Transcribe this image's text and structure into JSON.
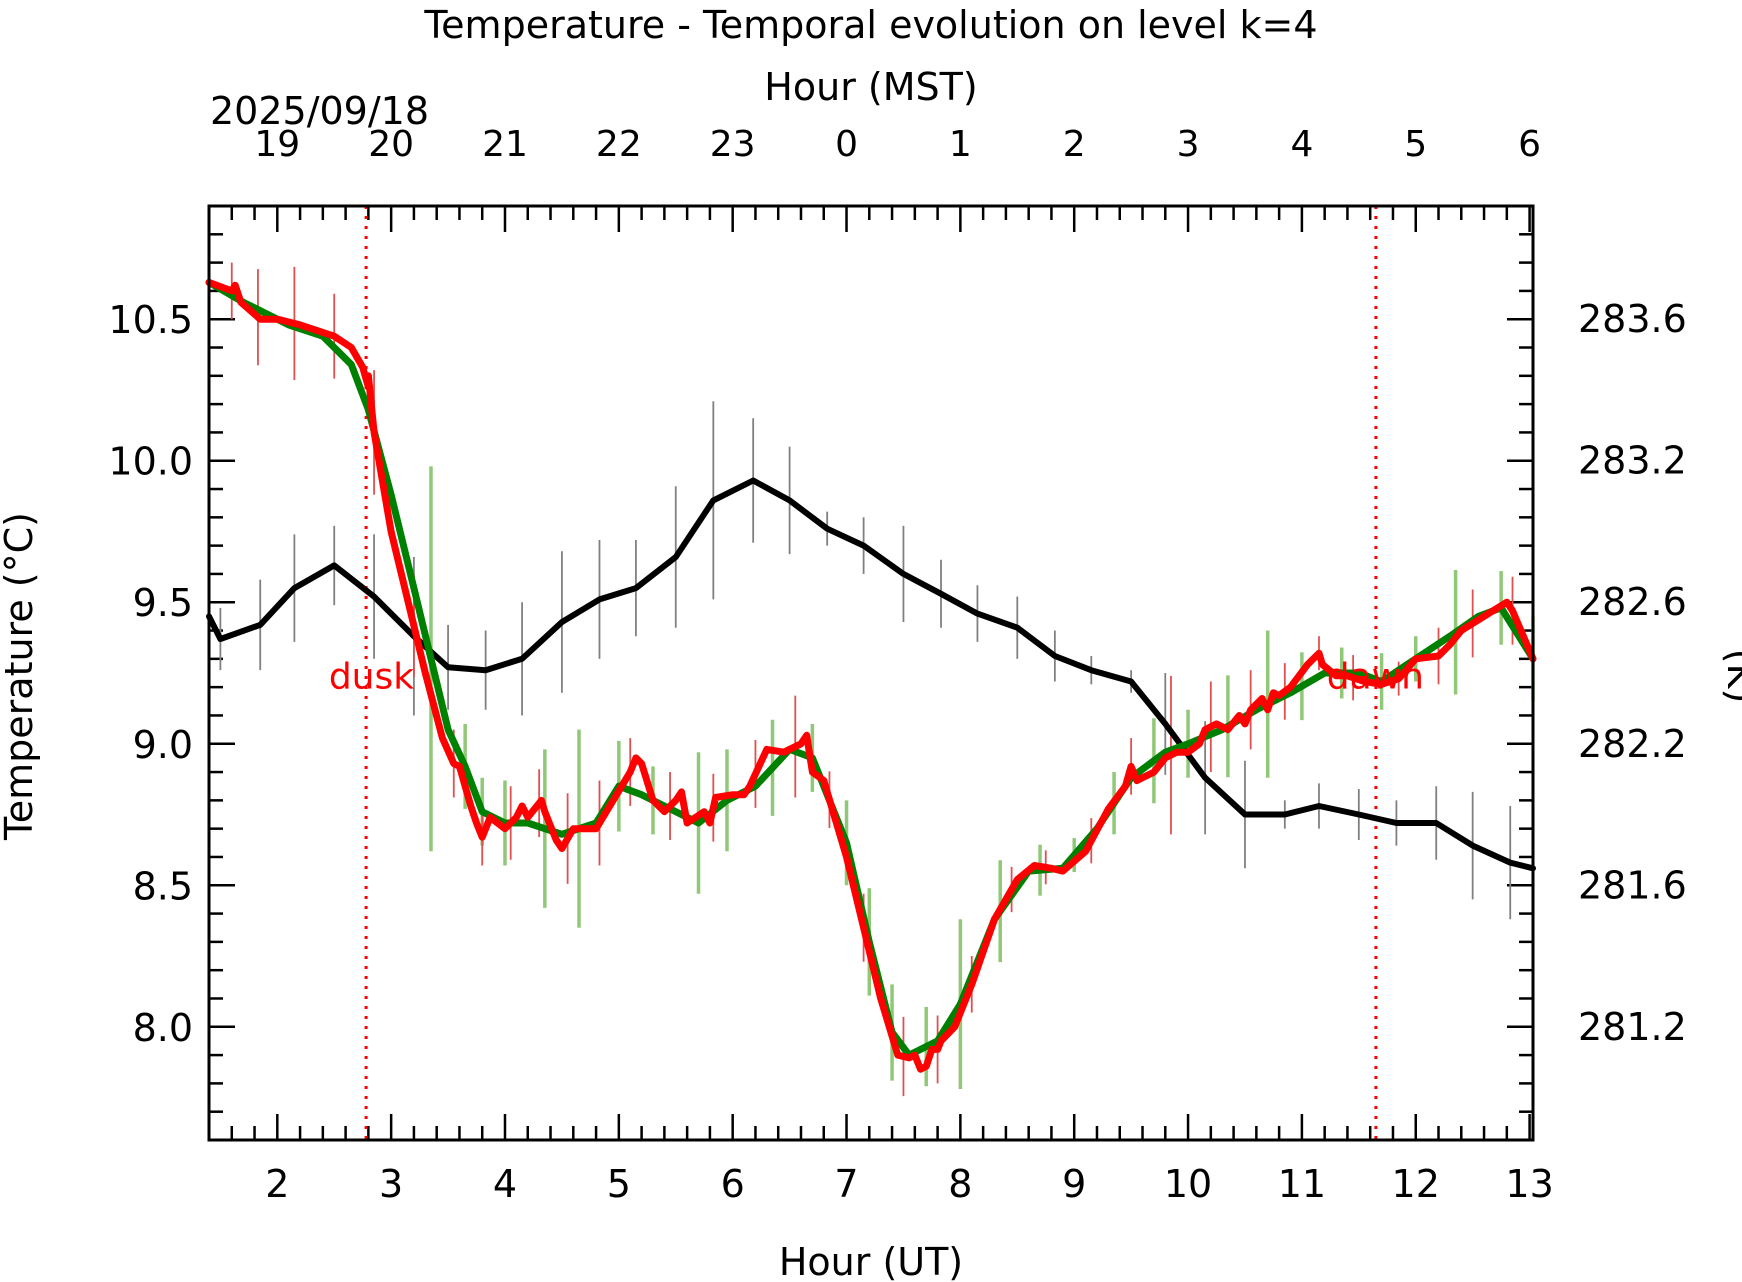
{
  "chart_data": {
    "type": "line",
    "title": "Temperature - Temporal evolution on level k=4",
    "xlabel": "Hour (UT)",
    "x2label": "Hour (MST)",
    "date_label": "2025/09/18",
    "ylabel": "Temperature (°C)",
    "y2label": "(K)",
    "xlim": [
      1.4,
      13.03
    ],
    "ylim": [
      7.6,
      10.9
    ],
    "y2lim": [
      280.88,
      284.18
    ],
    "grid": false,
    "x_ticks": [
      "2",
      "3",
      "4",
      "5",
      "6",
      "7",
      "8",
      "9",
      "10",
      "11",
      "12",
      "13"
    ],
    "x_tick_values": [
      2,
      3,
      4,
      5,
      6,
      7,
      8,
      9,
      10,
      11,
      12,
      13
    ],
    "x2_ticks": [
      "19",
      "20",
      "21",
      "22",
      "23",
      "0",
      "1",
      "2",
      "3",
      "4",
      "5",
      "6"
    ],
    "x2_tick_values": [
      2,
      3,
      4,
      5,
      6,
      7,
      8,
      9,
      10,
      11,
      12,
      13
    ],
    "y_ticks": [
      "8.0",
      "8.5",
      "9.0",
      "9.5",
      "10.0",
      "10.5"
    ],
    "y_tick_values": [
      8.0,
      8.5,
      9.0,
      9.5,
      10.0,
      10.5
    ],
    "y2_ticks": [
      "281.2",
      "281.6",
      "282.2",
      "282.6",
      "283.2",
      "283.6"
    ],
    "y2_tick_values": [
      8.0,
      8.5,
      9.0,
      9.5,
      10.0,
      10.5
    ],
    "annotations": [
      {
        "label": "dusk",
        "x": 2.78,
        "y": 9.23,
        "color": "#ff0000",
        "align": "end"
      },
      {
        "label": "dawn",
        "x": 11.65,
        "y": 9.23,
        "color": "#ff0000",
        "align": "end"
      }
    ],
    "vlines": [
      {
        "x": 2.78,
        "color": "#ff0000"
      },
      {
        "x": 11.65,
        "color": "#ff0000"
      }
    ],
    "series": [
      {
        "color": "#000000",
        "errcolor": "#808080",
        "x": [
          1.4,
          1.5,
          1.85,
          2.15,
          2.5,
          2.85,
          3.2,
          3.5,
          3.83,
          4.15,
          4.5,
          4.83,
          5.15,
          5.5,
          5.83,
          6.18,
          6.5,
          6.83,
          7.15,
          7.5,
          7.83,
          8.15,
          8.5,
          8.83,
          9.15,
          9.5,
          9.8,
          10.15,
          10.5,
          10.85,
          11.15,
          11.5,
          11.83,
          12.18,
          12.5,
          12.83,
          13.03
        ],
        "y": [
          9.45,
          9.37,
          9.42,
          9.55,
          9.63,
          9.52,
          9.38,
          9.27,
          9.26,
          9.3,
          9.43,
          9.51,
          9.55,
          9.66,
          9.86,
          9.93,
          9.86,
          9.76,
          9.7,
          9.6,
          9.53,
          9.46,
          9.41,
          9.31,
          9.26,
          9.22,
          9.07,
          8.88,
          8.75,
          8.75,
          8.78,
          8.75,
          8.72,
          8.72,
          8.64,
          8.58,
          8.56
        ],
        "errors": [
          [
            1.5,
            0.11
          ],
          [
            1.85,
            0.16
          ],
          [
            2.15,
            0.19
          ],
          [
            2.5,
            0.14
          ],
          [
            2.85,
            0.22
          ],
          [
            3.2,
            0.28
          ],
          [
            3.5,
            0.15
          ],
          [
            3.83,
            0.14
          ],
          [
            4.15,
            0.2
          ],
          [
            4.5,
            0.25
          ],
          [
            4.83,
            0.21
          ],
          [
            5.15,
            0.17
          ],
          [
            5.5,
            0.25
          ],
          [
            5.83,
            0.35
          ],
          [
            6.18,
            0.22
          ],
          [
            6.5,
            0.19
          ],
          [
            6.83,
            0.06
          ],
          [
            7.15,
            0.1
          ],
          [
            7.5,
            0.17
          ],
          [
            7.83,
            0.12
          ],
          [
            8.15,
            0.1
          ],
          [
            8.5,
            0.11
          ],
          [
            8.83,
            0.09
          ],
          [
            9.15,
            0.05
          ],
          [
            9.5,
            0.04
          ],
          [
            9.8,
            0.18
          ],
          [
            10.15,
            0.2
          ],
          [
            10.5,
            0.19
          ],
          [
            10.85,
            0.05
          ],
          [
            11.15,
            0.08
          ],
          [
            11.5,
            0.09
          ],
          [
            11.83,
            0.08
          ],
          [
            12.18,
            0.13
          ],
          [
            12.5,
            0.19
          ],
          [
            12.83,
            0.2
          ]
        ]
      },
      {
        "color": "#008000",
        "errcolor": "#90c878",
        "x": [
          1.4,
          1.7,
          2.1,
          2.4,
          2.65,
          2.8,
          3.0,
          3.2,
          3.35,
          3.5,
          3.65,
          3.8,
          4.0,
          4.2,
          4.5,
          4.8,
          5.0,
          5.2,
          5.45,
          5.7,
          5.95,
          6.2,
          6.5,
          6.7,
          7.0,
          7.2,
          7.4,
          7.55,
          7.8,
          8.0,
          8.3,
          8.6,
          8.9,
          9.2,
          9.5,
          9.8,
          10.0,
          10.3,
          10.6,
          10.9,
          11.2,
          11.5,
          11.7,
          12.0,
          12.3,
          12.55,
          12.75,
          13.03
        ],
        "y": [
          10.63,
          10.56,
          10.48,
          10.44,
          10.34,
          10.18,
          9.88,
          9.55,
          9.3,
          9.05,
          8.92,
          8.76,
          8.72,
          8.72,
          8.68,
          8.72,
          8.85,
          8.82,
          8.77,
          8.72,
          8.8,
          8.85,
          8.98,
          8.95,
          8.65,
          8.3,
          7.98,
          7.9,
          7.95,
          8.08,
          8.38,
          8.55,
          8.56,
          8.7,
          8.88,
          8.97,
          9.0,
          9.05,
          9.12,
          9.18,
          9.25,
          9.25,
          9.22,
          9.3,
          9.38,
          9.45,
          9.48,
          9.3
        ],
        "errors": [
          [
            3.35,
            0.68
          ],
          [
            3.65,
            0.15
          ],
          [
            3.8,
            0.12
          ],
          [
            4.0,
            0.15
          ],
          [
            4.35,
            0.28
          ],
          [
            4.65,
            0.35
          ],
          [
            5.0,
            0.16
          ],
          [
            5.3,
            0.12
          ],
          [
            5.7,
            0.25
          ],
          [
            5.95,
            0.18
          ],
          [
            6.35,
            0.17
          ],
          [
            6.7,
            0.12
          ],
          [
            7.0,
            0.15
          ],
          [
            7.2,
            0.19
          ],
          [
            7.4,
            0.17
          ],
          [
            7.7,
            0.14
          ],
          [
            8.0,
            0.3
          ],
          [
            8.35,
            0.18
          ],
          [
            8.7,
            0.09
          ],
          [
            9.0,
            0.06
          ],
          [
            9.35,
            0.11
          ],
          [
            9.7,
            0.15
          ],
          [
            10.0,
            0.12
          ],
          [
            10.35,
            0.18
          ],
          [
            10.7,
            0.26
          ],
          [
            11.0,
            0.12
          ],
          [
            11.35,
            0.09
          ],
          [
            11.7,
            0.1
          ],
          [
            12.0,
            0.08
          ],
          [
            12.35,
            0.22
          ],
          [
            12.75,
            0.13
          ],
          [
            13.03,
            0.15
          ]
        ]
      },
      {
        "color": "#ff0000",
        "errcolor": "#e05050",
        "x": [
          1.4,
          1.6,
          1.63,
          1.68,
          1.85,
          2.0,
          2.2,
          2.5,
          2.65,
          2.75,
          2.8,
          2.8,
          2.85,
          3.0,
          3.15,
          3.3,
          3.45,
          3.55,
          3.6,
          3.7,
          3.75,
          3.8,
          3.87,
          4.0,
          4.1,
          4.15,
          4.2,
          4.32,
          4.35,
          4.45,
          4.5,
          4.6,
          4.8,
          4.95,
          5.1,
          5.15,
          5.2,
          5.3,
          5.4,
          5.5,
          5.55,
          5.6,
          5.75,
          5.8,
          5.85,
          6.0,
          6.1,
          6.15,
          6.3,
          6.45,
          6.6,
          6.65,
          6.7,
          6.8,
          7.0,
          7.15,
          7.3,
          7.45,
          7.55,
          7.6,
          7.65,
          7.7,
          7.75,
          7.8,
          7.83,
          7.95,
          8.1,
          8.3,
          8.5,
          8.65,
          8.8,
          8.9,
          9.1,
          9.3,
          9.45,
          9.5,
          9.55,
          9.7,
          9.8,
          9.9,
          10.0,
          10.1,
          10.15,
          10.25,
          10.35,
          10.45,
          10.5,
          10.55,
          10.65,
          10.7,
          10.75,
          10.8,
          10.9,
          11.05,
          11.15,
          11.18,
          11.3,
          11.4,
          11.55,
          11.7,
          11.85,
          12.0,
          12.2,
          12.3,
          12.4,
          12.6,
          12.8,
          12.85,
          13.03
        ],
        "y": [
          10.63,
          10.6,
          10.62,
          10.56,
          10.5,
          10.5,
          10.48,
          10.44,
          10.4,
          10.33,
          10.26,
          10.3,
          10.1,
          9.75,
          9.5,
          9.25,
          9.02,
          8.93,
          8.92,
          8.78,
          8.72,
          8.67,
          8.74,
          8.7,
          8.74,
          8.78,
          8.74,
          8.8,
          8.76,
          8.66,
          8.63,
          8.7,
          8.7,
          8.8,
          8.9,
          8.95,
          8.93,
          8.8,
          8.76,
          8.8,
          8.83,
          8.72,
          8.76,
          8.72,
          8.81,
          8.82,
          8.82,
          8.85,
          8.98,
          8.97,
          9.0,
          9.03,
          8.9,
          8.87,
          8.6,
          8.35,
          8.1,
          7.9,
          7.89,
          7.9,
          7.85,
          7.86,
          7.92,
          7.92,
          7.95,
          8.0,
          8.15,
          8.38,
          8.52,
          8.57,
          8.56,
          8.55,
          8.62,
          8.77,
          8.85,
          8.92,
          8.87,
          8.9,
          8.95,
          8.97,
          8.97,
          9.0,
          9.05,
          9.07,
          9.05,
          9.1,
          9.07,
          9.12,
          9.16,
          9.12,
          9.18,
          9.17,
          9.2,
          9.28,
          9.32,
          9.28,
          9.24,
          9.24,
          9.22,
          9.21,
          9.23,
          9.3,
          9.31,
          9.35,
          9.4,
          9.45,
          9.5,
          9.47,
          9.3
        ],
        "errors": [
          [
            1.6,
            0.1
          ],
          [
            1.83,
            0.17
          ],
          [
            2.15,
            0.2
          ],
          [
            2.5,
            0.15
          ],
          [
            2.85,
            0.22
          ],
          [
            3.2,
            0.18
          ],
          [
            3.55,
            0.12
          ],
          [
            3.8,
            0.1
          ],
          [
            4.05,
            0.13
          ],
          [
            4.3,
            0.12
          ],
          [
            4.55,
            0.16
          ],
          [
            4.83,
            0.15
          ],
          [
            5.1,
            0.12
          ],
          [
            5.45,
            0.12
          ],
          [
            5.83,
            0.12
          ],
          [
            6.2,
            0.12
          ],
          [
            6.55,
            0.18
          ],
          [
            6.85,
            0.1
          ],
          [
            7.15,
            0.12
          ],
          [
            7.5,
            0.14
          ],
          [
            7.8,
            0.12
          ],
          [
            8.1,
            0.1
          ],
          [
            8.45,
            0.08
          ],
          [
            8.75,
            0.06
          ],
          [
            9.15,
            0.08
          ],
          [
            9.5,
            0.1
          ],
          [
            9.85,
            0.28
          ],
          [
            10.2,
            0.16
          ],
          [
            10.55,
            0.14
          ],
          [
            10.85,
            0.1
          ],
          [
            11.15,
            0.06
          ],
          [
            11.45,
            0.08
          ],
          [
            11.85,
            0.06
          ],
          [
            12.2,
            0.1
          ],
          [
            12.5,
            0.12
          ],
          [
            12.85,
            0.12
          ]
        ]
      }
    ]
  }
}
